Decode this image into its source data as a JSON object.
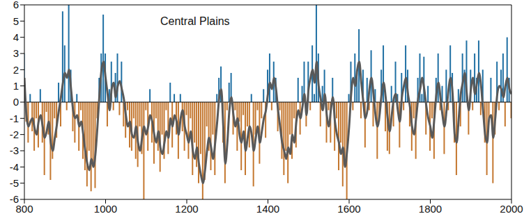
{
  "chart_data": {
    "type": "bar",
    "title": "Central Plains",
    "x": [
      800,
      805,
      810,
      815,
      820,
      825,
      830,
      835,
      840,
      845,
      850,
      855,
      860,
      865,
      870,
      875,
      880,
      885,
      890,
      895,
      900,
      905,
      910,
      915,
      920,
      925,
      930,
      935,
      940,
      945,
      950,
      955,
      960,
      965,
      970,
      975,
      980,
      985,
      990,
      995,
      1000,
      1005,
      1010,
      1015,
      1020,
      1025,
      1030,
      1035,
      1040,
      1045,
      1050,
      1055,
      1060,
      1065,
      1070,
      1075,
      1080,
      1085,
      1090,
      1095,
      1100,
      1105,
      1110,
      1115,
      1120,
      1125,
      1130,
      1135,
      1140,
      1145,
      1150,
      1155,
      1160,
      1165,
      1170,
      1175,
      1180,
      1185,
      1190,
      1195,
      1200,
      1205,
      1210,
      1215,
      1220,
      1225,
      1230,
      1235,
      1240,
      1245,
      1250,
      1255,
      1260,
      1265,
      1270,
      1275,
      1280,
      1285,
      1290,
      1295,
      1300,
      1305,
      1310,
      1315,
      1320,
      1325,
      1330,
      1335,
      1340,
      1345,
      1350,
      1355,
      1360,
      1365,
      1370,
      1375,
      1380,
      1385,
      1390,
      1395,
      1400,
      1405,
      1410,
      1415,
      1420,
      1425,
      1430,
      1435,
      1440,
      1445,
      1450,
      1455,
      1460,
      1465,
      1470,
      1475,
      1480,
      1485,
      1490,
      1495,
      1500,
      1505,
      1510,
      1515,
      1520,
      1525,
      1530,
      1535,
      1540,
      1545,
      1550,
      1555,
      1560,
      1565,
      1570,
      1575,
      1580,
      1585,
      1590,
      1595,
      1600,
      1605,
      1610,
      1615,
      1620,
      1625,
      1630,
      1635,
      1640,
      1645,
      1650,
      1655,
      1660,
      1665,
      1670,
      1675,
      1680,
      1685,
      1690,
      1695,
      1700,
      1705,
      1710,
      1715,
      1720,
      1725,
      1730,
      1735,
      1740,
      1745,
      1750,
      1755,
      1760,
      1765,
      1770,
      1775,
      1780,
      1785,
      1790,
      1795,
      1800,
      1805,
      1810,
      1815,
      1820,
      1825,
      1830,
      1835,
      1840,
      1845,
      1850,
      1855,
      1860,
      1865,
      1870,
      1875,
      1880,
      1885,
      1890,
      1895,
      1900,
      1905,
      1910,
      1915,
      1920,
      1925,
      1930,
      1935,
      1940,
      1945,
      1950,
      1955,
      1960,
      1965,
      1970,
      1975,
      1980,
      1985,
      1990,
      1995,
      2000
    ],
    "series": [
      {
        "type": "bar",
        "color": "#1f6fa3",
        "values": [
          3.0,
          null,
          null,
          0.5,
          null,
          null,
          null,
          null,
          0.8,
          null,
          null,
          null,
          null,
          null,
          null,
          null,
          null,
          1.2,
          null,
          5.6,
          3.5,
          null,
          6.0,
          2.0,
          null,
          null,
          0.5,
          null,
          null,
          null,
          null,
          null,
          null,
          null,
          null,
          null,
          null,
          1.5,
          3.0,
          5.4,
          3.0,
          null,
          0.8,
          2.5,
          null,
          1.8,
          3.0,
          null,
          2.5,
          null,
          null,
          null,
          null,
          null,
          null,
          null,
          null,
          null,
          null,
          null,
          null,
          null,
          0.8,
          null,
          null,
          null,
          null,
          null,
          null,
          null,
          null,
          null,
          1.2,
          null,
          0.5,
          null,
          null,
          0.5,
          null,
          null,
          null,
          null,
          null,
          null,
          null,
          null,
          null,
          null,
          null,
          null,
          null,
          null,
          null,
          null,
          null,
          0.5,
          1.5,
          2.2,
          null,
          null,
          null,
          1.2,
          1.8,
          null,
          null,
          null,
          null,
          null,
          null,
          null,
          null,
          null,
          0.5,
          null,
          null,
          null,
          null,
          null,
          0.8,
          null,
          2.0,
          3.0,
          null,
          2.5,
          1.5,
          null,
          null,
          null,
          null,
          null,
          null,
          null,
          null,
          null,
          null,
          1.5,
          null,
          1.0,
          2.5,
          null,
          2.5,
          null,
          3.5,
          0.5,
          6.0,
          3.0,
          null,
          1.0,
          2.0,
          null,
          null,
          null,
          1.5,
          null,
          null,
          null,
          null,
          null,
          null,
          null,
          0.5,
          2.5,
          null,
          3.0,
          1.8,
          4.5,
          null,
          2.0,
          null,
          1.5,
          null,
          3.2,
          null,
          0.8,
          null,
          null,
          2.0,
          3.5,
          null,
          null,
          null,
          1.0,
          null,
          2.5,
          0.5,
          null,
          1.8,
          null,
          3.5,
          2.0,
          null,
          null,
          null,
          null,
          1.5,
          3.0,
          0.5,
          2.8,
          null,
          1.0,
          null,
          null,
          null,
          1.5,
          3.0,
          null,
          1.0,
          null,
          2.0,
          null,
          3.5,
          1.8,
          null,
          null,
          0.8,
          null,
          3.0,
          2.0,
          3.8,
          null,
          2.0,
          null,
          3.0,
          1.5,
          3.8,
          null,
          2.0,
          null,
          null,
          null,
          1.5,
          null,
          null,
          2.5,
          null,
          2.0,
          3.0,
          null,
          4.0,
          1.5,
          null
        ]
      },
      {
        "type": "bar",
        "color": "#c4772f",
        "values": [
          null,
          -1.2,
          -2.5,
          null,
          -1.8,
          -3.0,
          -1.0,
          -2.8,
          null,
          -2.5,
          -4.5,
          -0.6,
          -2.0,
          -4.8,
          -3.5,
          -1.0,
          -2.2,
          null,
          -1.5,
          null,
          null,
          -0.5,
          null,
          null,
          -1.8,
          -2.5,
          null,
          -3.0,
          -0.5,
          -3.5,
          -4.2,
          -5.2,
          -3.0,
          -5.5,
          -3.8,
          -5.3,
          -1.0,
          null,
          null,
          null,
          null,
          -1.5,
          null,
          null,
          -0.5,
          null,
          null,
          -0.8,
          null,
          -1.5,
          -2.2,
          -0.5,
          -2.8,
          -3.0,
          -1.0,
          -3.5,
          -4.0,
          -1.5,
          -3.2,
          -6.0,
          -0.5,
          -3.0,
          null,
          -2.5,
          -3.8,
          -1.0,
          -3.0,
          -4.3,
          -2.0,
          -3.5,
          -0.5,
          -3.2,
          null,
          -2.8,
          null,
          -2.0,
          -3.5,
          null,
          -1.8,
          -3.0,
          -0.8,
          -3.5,
          -1.0,
          -4.5,
          -2.5,
          -4.0,
          -5.0,
          -3.2,
          -6.0,
          -4.8,
          -1.5,
          -3.0,
          -4.2,
          -2.0,
          -4.5,
          null,
          null,
          null,
          -2.5,
          -5.0,
          -0.5,
          null,
          null,
          -2.0,
          -0.5,
          -3.0,
          -1.2,
          -4.2,
          -0.8,
          -4.5,
          -1.5,
          -2.8,
          null,
          -5.2,
          -2.0,
          -0.5,
          -3.8,
          -1.0,
          null,
          -2.2,
          null,
          null,
          -0.5,
          null,
          null,
          -1.8,
          -0.5,
          -3.5,
          -4.5,
          -3.0,
          -5.0,
          -2.0,
          -3.5,
          -1.0,
          -2.8,
          null,
          -2.0,
          null,
          null,
          -1.5,
          null,
          -0.5,
          null,
          null,
          null,
          null,
          -1.5,
          null,
          null,
          -2.5,
          -0.5,
          -2.5,
          null,
          -3.0,
          -1.0,
          -4.2,
          -2.5,
          -5.2,
          -3.5,
          -6.0,
          null,
          null,
          -0.5,
          null,
          null,
          null,
          -1.0,
          null,
          -2.8,
          null,
          -0.5,
          null,
          -1.5,
          null,
          -3.5,
          -1.2,
          null,
          null,
          -1.8,
          -3.0,
          -3.2,
          null,
          -1.5,
          null,
          null,
          -2.8,
          null,
          -0.5,
          null,
          null,
          -1.5,
          -3.0,
          -1.0,
          -3.5,
          null,
          null,
          null,
          null,
          -2.0,
          null,
          -3.0,
          -1.0,
          -3.5,
          null,
          null,
          -0.5,
          null,
          -3.2,
          null,
          -0.5,
          null,
          null,
          -2.5,
          -4.5,
          null,
          -1.5,
          null,
          null,
          null,
          -2.0,
          null,
          -0.5,
          null,
          null,
          null,
          -0.8,
          null,
          -2.5,
          -4.5,
          -1.0,
          null,
          -5.0,
          -2.0,
          null,
          -0.5,
          null,
          null,
          -1.5,
          null,
          null,
          -1.0
        ]
      },
      {
        "type": "line",
        "color": "#595959",
        "values": [
          1.5,
          -0.8,
          -1.5,
          -1.2,
          -1.0,
          -1.6,
          -2.0,
          -1.2,
          -0.8,
          -1.5,
          -2.2,
          -1.8,
          -1.2,
          -2.5,
          -3.0,
          -2.2,
          -1.4,
          -0.5,
          0.3,
          1.2,
          1.8,
          1.5,
          2.0,
          0.8,
          -0.5,
          -1.0,
          -0.8,
          -1.5,
          -1.2,
          -2.0,
          -3.0,
          -3.8,
          -4.2,
          -3.5,
          -4.0,
          -3.2,
          -1.5,
          0.5,
          2.0,
          2.5,
          1.5,
          0.5,
          -0.5,
          0.8,
          1.2,
          0.3,
          1.0,
          1.3,
          0.8,
          0.2,
          -0.8,
          -1.5,
          -1.2,
          -2.0,
          -2.2,
          -1.5,
          -2.5,
          -3.0,
          -2.2,
          -1.5,
          -2.0,
          -1.5,
          -0.8,
          -1.2,
          -2.0,
          -2.5,
          -1.8,
          -2.8,
          -3.2,
          -2.5,
          -1.8,
          -2.2,
          -1.0,
          -1.5,
          -0.8,
          -1.2,
          -2.0,
          -1.0,
          -0.5,
          -1.5,
          -2.0,
          -2.5,
          -1.8,
          -3.0,
          -3.5,
          -2.8,
          -3.8,
          -4.5,
          -5.0,
          -4.2,
          -3.0,
          -2.2,
          -2.8,
          -3.5,
          -2.5,
          -1.2,
          0.3,
          0.8,
          -1.5,
          -3.8,
          -2.5,
          -0.5,
          0.3,
          -0.8,
          -1.5,
          -1.0,
          -2.0,
          -2.5,
          -1.8,
          -3.0,
          -2.2,
          -1.5,
          -2.0,
          -3.0,
          -2.2,
          -1.5,
          -2.5,
          -1.8,
          -1.0,
          -0.5,
          0.5,
          1.2,
          0.8,
          1.5,
          0.8,
          -0.5,
          -1.5,
          -2.5,
          -3.0,
          -3.5,
          -2.8,
          -3.2,
          -2.0,
          -2.5,
          -1.2,
          -0.5,
          -1.0,
          -0.3,
          0.5,
          -0.8,
          0.8,
          1.5,
          2.0,
          1.2,
          2.5,
          1.0,
          0.2,
          -0.5,
          0.5,
          -0.8,
          -1.5,
          -0.5,
          0.3,
          -1.2,
          -2.0,
          -2.5,
          -3.2,
          -2.8,
          -4.0,
          -3.0,
          -1.5,
          0.5,
          1.5,
          1.0,
          2.0,
          2.5,
          1.2,
          0.0,
          -1.0,
          -0.5,
          0.8,
          1.5,
          0.5,
          -0.8,
          -1.5,
          -0.8,
          0.5,
          1.2,
          0.3,
          -1.0,
          -1.8,
          -0.8,
          0.2,
          0.5,
          -0.5,
          -1.2,
          0.3,
          1.0,
          1.5,
          0.5,
          -0.3,
          -1.5,
          -2.0,
          -1.0,
          0.2,
          0.8,
          1.5,
          0.8,
          -0.2,
          -1.0,
          -1.5,
          -2.2,
          -1.0,
          0.5,
          1.2,
          0.3,
          -0.8,
          -1.5,
          -0.5,
          0.8,
          1.5,
          0.5,
          -2.0,
          -2.5,
          -1.0,
          0.5,
          1.2,
          1.8,
          0.5,
          -0.5,
          0.8,
          1.5,
          0.5,
          1.2,
          1.8,
          1.0,
          -0.5,
          -2.0,
          -2.5,
          -1.0,
          -0.8,
          -2.2,
          -1.0,
          0.5,
          1.0,
          0.8,
          0.3,
          1.0,
          1.5,
          0.8,
          0.5
        ]
      }
    ],
    "stacked": true,
    "xlim": [
      800,
      2000
    ],
    "xticks": [
      800,
      1000,
      1200,
      1400,
      1600,
      1800,
      2000
    ],
    "ylim": [
      -6,
      6
    ],
    "yticks": [
      -6,
      -5,
      -4,
      -3,
      -2,
      -1,
      0,
      1,
      2,
      3,
      4,
      5,
      6
    ],
    "grid": false
  }
}
